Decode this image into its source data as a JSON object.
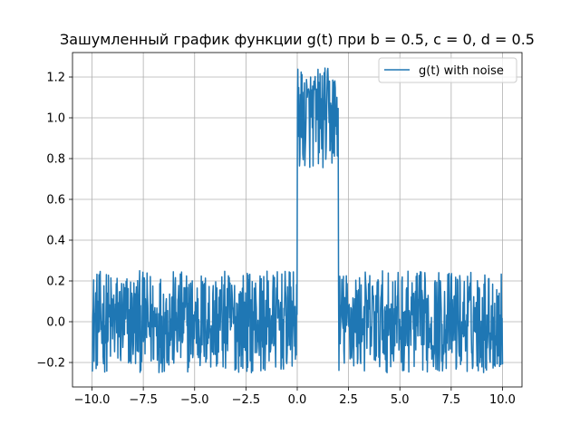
{
  "chart_data": {
    "type": "line",
    "title": "Зашумленный график функции g(t) при b = 0.5, c = 0, d = 0.5",
    "xlabel": "",
    "ylabel": "",
    "xlim": [
      -10.95,
      10.95
    ],
    "ylim": [
      -0.32,
      1.32
    ],
    "grid": true,
    "legend_position": "top-right",
    "x_ticks": [
      -10.0,
      -7.5,
      -5.0,
      -2.5,
      0.0,
      2.5,
      5.0,
      7.5,
      10.0
    ],
    "x_tick_labels": [
      "−10.0",
      "−7.5",
      "−5.0",
      "−2.5",
      "0.0",
      "2.5",
      "5.0",
      "7.5",
      "10.0"
    ],
    "y_ticks": [
      -0.2,
      0.0,
      0.2,
      0.4,
      0.6,
      0.8,
      1.0,
      1.2
    ],
    "y_tick_labels": [
      "−0.2",
      "0.0",
      "0.2",
      "0.4",
      "0.6",
      "0.8",
      "1.0",
      "1.2"
    ],
    "series": [
      {
        "name": "g(t) with noise",
        "color": "#1f77b4",
        "description": "Noisy rectangular pulse: baseline 0 with uniform noise about ±0.25 for t outside [0, 2]; level 1.0 with noise about ±0.25 for t in [0, 2]; sampled roughly every 0.02 from -10 to 10",
        "t_start": -10.0,
        "t_end": 10.0,
        "sample_count": 1000,
        "pulse_start": 0.0,
        "pulse_end": 2.0,
        "baseline_level": 0.0,
        "pulse_level": 1.0,
        "noise_amplitude": 0.25
      }
    ]
  }
}
